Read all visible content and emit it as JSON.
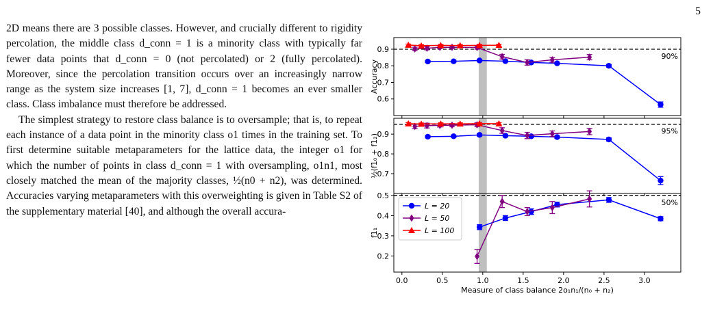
{
  "page": {
    "number": "5"
  },
  "body_text": {
    "paragraph1": "2D means there are 3 possible classes. However, and crucially different to rigidity percolation, the middle class d_conn = 1 is a minority class with typically far fewer data points that d_conn = 0 (not percolated) or 2 (fully percolated). Moreover, since the percolation transition occurs over an increasingly narrow range as the system size increases [1, 7], d_conn = 1 becomes an ever smaller class. Class imbalance must therefore be addressed.",
    "paragraph2": "The simplest strategy to restore class balance is to oversample; that is, to repeat each instance of a data point in the minority class o1 times in the training set. To first determine suitable metaparameters for the lattice data, the integer o1 for which the number of points in class d_conn = 1 with oversampling, o1n1, most closely matched the mean of the majority classes, ½(n0 + n2), was determined. Accuracies varying metaparameters with this overweighting is given in Table S2 of the supplementary material [40], and although the overall accura-"
  },
  "chart_data": {
    "type": "line",
    "xlabel": "Measure of class balance 2o₁n₁/(n₀ + n₂)",
    "xlim": [
      -0.1,
      3.45
    ],
    "xticks": [
      "0.0",
      "0.5",
      "1.0",
      "1.5",
      "2.0",
      "2.5",
      "3.0"
    ],
    "xtick_values": [
      0.0,
      0.5,
      1.0,
      1.5,
      2.0,
      2.5,
      3.0
    ],
    "highlight_band": [
      0.95,
      1.05
    ],
    "legend": {
      "placement": "lower-left",
      "entries": [
        "L = 20",
        "L = 50",
        "L = 100"
      ]
    },
    "colors": {
      "L20": "#0000ff",
      "L50": "#800080",
      "L100": "#ff0000",
      "band": "#bfbfbf"
    },
    "panels": [
      {
        "ylabel": "Accuracy",
        "ylim": [
          0.5,
          0.97
        ],
        "yticks": [
          "0.6",
          "0.7",
          "0.8",
          "0.9"
        ],
        "ytick_values": [
          0.6,
          0.7,
          0.8,
          0.9
        ],
        "reference_line": 0.9,
        "reference_label": "90%",
        "series": [
          {
            "name": "L = 20",
            "x": [
              0.32,
              0.64,
              0.96,
              1.28,
              1.6,
              1.92,
              2.56,
              3.2
            ],
            "y": [
              0.826,
              0.827,
              0.832,
              0.828,
              0.82,
              0.815,
              0.8,
              0.566
            ],
            "err": [
              0.006,
              0.006,
              0.006,
              0.006,
              0.006,
              0.006,
              0.008,
              0.016
            ]
          },
          {
            "name": "L = 50",
            "x": [
              0.16,
              0.31,
              0.47,
              0.62,
              0.93,
              1.24,
              1.55,
              1.86,
              2.32
            ],
            "y": [
              0.902,
              0.906,
              0.911,
              0.912,
              0.91,
              0.855,
              0.82,
              0.836,
              0.852
            ],
            "err": [
              0.01,
              0.01,
              0.008,
              0.008,
              0.01,
              0.014,
              0.016,
              0.014,
              0.016
            ]
          },
          {
            "name": "L = 100",
            "x": [
              0.08,
              0.24,
              0.48,
              0.72,
              0.96,
              1.2
            ],
            "y": [
              0.925,
              0.921,
              0.923,
              0.922,
              0.923,
              0.924
            ],
            "err": [
              0.006,
              0.006,
              0.006,
              0.006,
              0.006,
              0.006
            ]
          }
        ]
      },
      {
        "ylabel": "½(f1₀ + f1₂)",
        "ylim": [
          0.6,
          0.98
        ],
        "yticks": [
          "0.7",
          "0.8",
          "0.9"
        ],
        "ytick_values": [
          0.7,
          0.8,
          0.9
        ],
        "reference_line": 0.95,
        "reference_label": "95%",
        "series": [
          {
            "name": "L = 20",
            "x": [
              0.32,
              0.64,
              0.96,
              1.28,
              1.6,
              1.92,
              2.56,
              3.2
            ],
            "y": [
              0.887,
              0.889,
              0.896,
              0.892,
              0.889,
              0.885,
              0.873,
              0.665
            ],
            "err": [
              0.006,
              0.006,
              0.006,
              0.006,
              0.006,
              0.006,
              0.008,
              0.02
            ]
          },
          {
            "name": "L = 50",
            "x": [
              0.16,
              0.31,
              0.47,
              0.62,
              0.93,
              1.24,
              1.55,
              1.86,
              2.32
            ],
            "y": [
              0.939,
              0.943,
              0.944,
              0.945,
              0.947,
              0.918,
              0.893,
              0.902,
              0.913
            ],
            "err": [
              0.012,
              0.012,
              0.008,
              0.008,
              0.01,
              0.014,
              0.016,
              0.014,
              0.016
            ]
          },
          {
            "name": "L = 100",
            "x": [
              0.08,
              0.24,
              0.48,
              0.72,
              0.96,
              1.2
            ],
            "y": [
              0.953,
              0.951,
              0.952,
              0.952,
              0.953,
              0.953
            ],
            "err": [
              0.005,
              0.005,
              0.005,
              0.005,
              0.005,
              0.005
            ]
          }
        ]
      },
      {
        "ylabel": "f1₁",
        "ylim": [
          0.12,
          0.51
        ],
        "yticks": [
          "0.2",
          "0.3",
          "0.4",
          "0.5"
        ],
        "ytick_values": [
          0.2,
          0.3,
          0.4,
          0.5
        ],
        "reference_line": 0.5,
        "reference_label": "50%",
        "series": [
          {
            "name": "L = 20",
            "x": [
              0.96,
              1.28,
              1.6,
              1.92,
              2.56,
              3.2
            ],
            "y": [
              0.343,
              0.388,
              0.42,
              0.455,
              0.478,
              0.385
            ],
            "err": [
              0.012,
              0.012,
              0.014,
              0.012,
              0.012,
              0.01
            ]
          },
          {
            "name": "L = 50",
            "x": [
              0.93,
              1.24,
              1.55,
              1.86,
              2.32
            ],
            "y": [
              0.198,
              0.47,
              0.42,
              0.44,
              0.483
            ],
            "err": [
              0.035,
              0.03,
              0.02,
              0.03,
              0.04
            ]
          }
        ]
      }
    ]
  }
}
